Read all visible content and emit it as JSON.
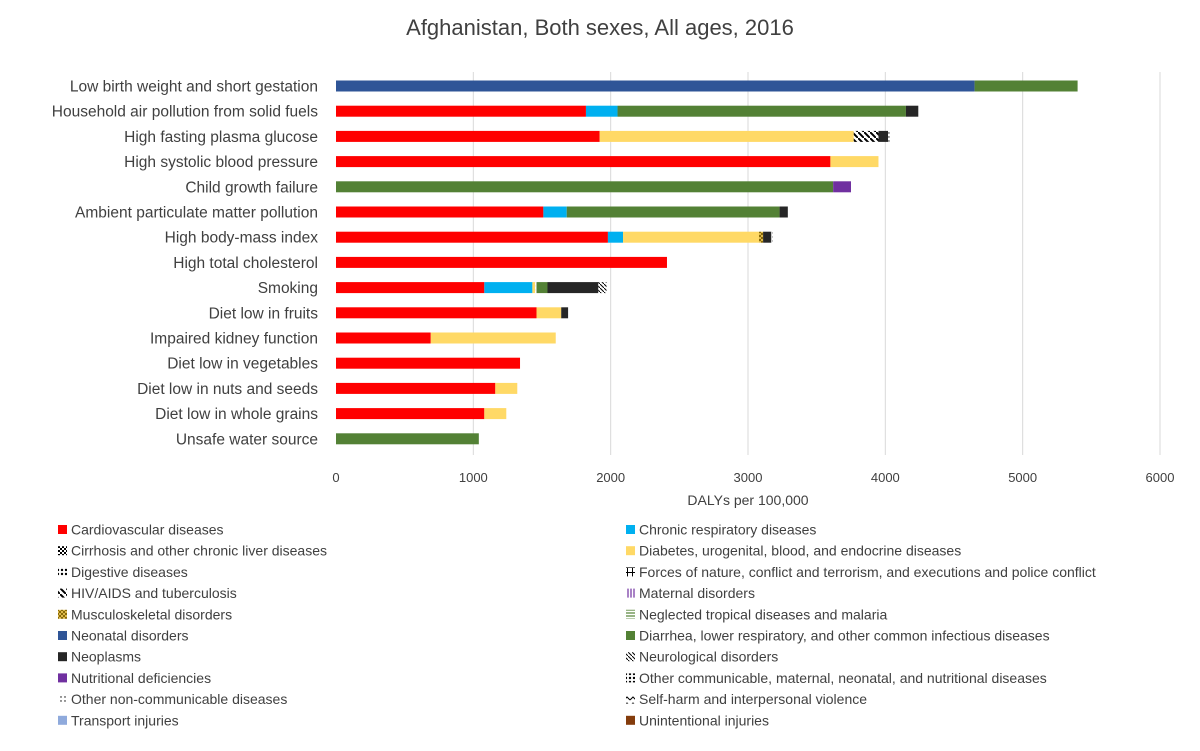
{
  "chart_data": {
    "type": "bar",
    "orientation": "horizontal",
    "stacked": true,
    "title": "Afghanistan, Both sexes, All ages, 2016",
    "xlabel": "DALYs per 100,000",
    "xlim": [
      0,
      6000
    ],
    "xticks": [
      "0",
      "1000",
      "2000",
      "3000",
      "4000",
      "5000",
      "6000"
    ],
    "grid": "vertical",
    "legend_position": "bottom",
    "categories": [
      "Low birth weight and short gestation",
      "Household air pollution from solid fuels",
      "High fasting plasma glucose",
      "High systolic blood pressure",
      "Child growth failure",
      "Ambient particulate matter pollution",
      "High body-mass index",
      "High total cholesterol",
      "Smoking",
      "Diet low in fruits",
      "Impaired kidney function",
      "Diet low in vegetables",
      "Diet low in nuts and seeds",
      "Diet low in whole grains",
      "Unsafe water source"
    ],
    "series": [
      {
        "name": "Cardiovascular diseases",
        "color": "#ff0000",
        "pattern": "solid",
        "values": [
          0,
          1820,
          1920,
          3600,
          0,
          1510,
          1980,
          2410,
          1080,
          1460,
          690,
          1340,
          1160,
          1080,
          0
        ]
      },
      {
        "name": "Chronic respiratory diseases",
        "color": "#00b0f0",
        "pattern": "solid",
        "values": [
          0,
          230,
          0,
          0,
          0,
          170,
          110,
          0,
          350,
          0,
          0,
          0,
          0,
          0,
          0
        ]
      },
      {
        "name": "Cirrhosis and other chronic liver diseases",
        "color": "#000000",
        "pattern": "check",
        "values": [
          0,
          0,
          0,
          0,
          0,
          0,
          0,
          0,
          0,
          0,
          0,
          0,
          0,
          0,
          0
        ]
      },
      {
        "name": "Diabetes, urogenital, blood, and endocrine diseases",
        "color": "#ffd966",
        "pattern": "solid",
        "values": [
          0,
          0,
          1850,
          350,
          0,
          0,
          990,
          0,
          20,
          180,
          910,
          0,
          160,
          160,
          0
        ]
      },
      {
        "name": "Digestive diseases",
        "color": "#000000",
        "pattern": "dots",
        "values": [
          0,
          0,
          0,
          0,
          0,
          0,
          0,
          0,
          10,
          0,
          0,
          0,
          0,
          0,
          0
        ]
      },
      {
        "name": "Forces of nature, conflict and terrorism, and executions and police conflict",
        "color": "#000000",
        "pattern": "cross",
        "values": [
          0,
          0,
          0,
          0,
          0,
          0,
          0,
          0,
          0,
          0,
          0,
          0,
          0,
          0,
          0
        ]
      },
      {
        "name": "HIV/AIDS and tuberculosis",
        "color": "#000000",
        "pattern": "diag",
        "values": [
          0,
          0,
          180,
          0,
          0,
          0,
          0,
          0,
          0,
          0,
          0,
          0,
          0,
          0,
          0
        ]
      },
      {
        "name": "Maternal disorders",
        "color": "#7030a0",
        "pattern": "vlines",
        "values": [
          0,
          0,
          0,
          0,
          0,
          0,
          0,
          0,
          0,
          0,
          0,
          0,
          0,
          0,
          0
        ]
      },
      {
        "name": "Musculoskeletal disorders",
        "color": "#7f6000",
        "pattern": "weave",
        "values": [
          0,
          0,
          0,
          0,
          0,
          0,
          30,
          0,
          0,
          0,
          0,
          0,
          0,
          0,
          0
        ]
      },
      {
        "name": "Neglected tropical diseases and malaria",
        "color": "#548235",
        "pattern": "hlines",
        "values": [
          0,
          0,
          0,
          0,
          0,
          0,
          0,
          0,
          0,
          0,
          0,
          0,
          0,
          0,
          0
        ]
      },
      {
        "name": "Neonatal disorders",
        "color": "#2f5597",
        "pattern": "solid",
        "values": [
          4650,
          0,
          0,
          0,
          0,
          0,
          0,
          0,
          0,
          0,
          0,
          0,
          0,
          0,
          0
        ]
      },
      {
        "name": "Diarrhea, lower respiratory, and other common infectious diseases",
        "color": "#538135",
        "pattern": "solid",
        "values": [
          750,
          2100,
          0,
          0,
          3620,
          1550,
          0,
          0,
          80,
          0,
          0,
          0,
          0,
          0,
          1040
        ]
      },
      {
        "name": "Neoplasms",
        "color": "#262626",
        "pattern": "solid",
        "values": [
          0,
          90,
          70,
          0,
          0,
          60,
          60,
          0,
          370,
          50,
          0,
          0,
          0,
          0,
          0
        ]
      },
      {
        "name": "Neurological disorders",
        "color": "#000000",
        "pattern": "diag2",
        "values": [
          0,
          0,
          0,
          0,
          0,
          0,
          0,
          0,
          60,
          0,
          0,
          0,
          0,
          0,
          0
        ]
      },
      {
        "name": "Nutritional deficiencies",
        "color": "#7030a0",
        "pattern": "solid",
        "values": [
          0,
          0,
          0,
          0,
          130,
          0,
          0,
          0,
          0,
          0,
          0,
          0,
          0,
          0,
          0
        ]
      },
      {
        "name": "Other communicable, maternal, neonatal, and nutritional diseases",
        "color": "#8faadc",
        "pattern": "dots",
        "values": [
          0,
          0,
          0,
          0,
          0,
          0,
          0,
          0,
          0,
          0,
          0,
          0,
          0,
          0,
          0
        ]
      },
      {
        "name": "Other non-communicable diseases",
        "color": "#000000",
        "pattern": "sparse",
        "values": [
          0,
          0,
          10,
          0,
          0,
          0,
          10,
          0,
          10,
          0,
          0,
          0,
          0,
          0,
          0
        ]
      },
      {
        "name": "Self-harm and interpersonal violence",
        "color": "#000000",
        "pattern": "zigzag",
        "values": [
          0,
          0,
          0,
          0,
          0,
          0,
          0,
          0,
          0,
          0,
          0,
          0,
          0,
          0,
          0
        ]
      },
      {
        "name": "Transport injuries",
        "color": "#8faadc",
        "pattern": "solid",
        "values": [
          0,
          0,
          0,
          0,
          0,
          0,
          0,
          0,
          0,
          0,
          0,
          0,
          0,
          0,
          0
        ]
      },
      {
        "name": "Unintentional injuries",
        "color": "#843c0c",
        "pattern": "solid",
        "values": [
          0,
          0,
          0,
          0,
          0,
          0,
          0,
          0,
          0,
          0,
          0,
          0,
          0,
          0,
          0
        ]
      }
    ]
  }
}
